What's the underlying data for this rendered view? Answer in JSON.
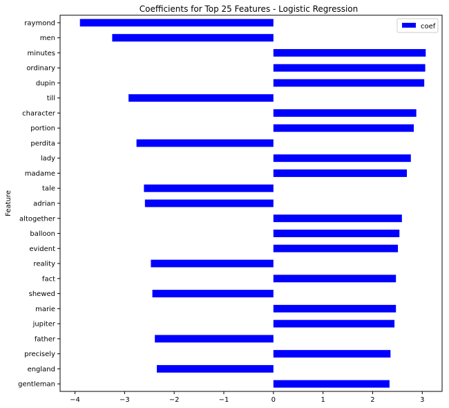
{
  "chart_data": {
    "type": "bar",
    "orientation": "horizontal",
    "title": "Coefficients for Top 25 Features - Logistic Regression",
    "xlabel": "",
    "ylabel": "Feature",
    "xlim": [
      -4.3,
      3.4
    ],
    "xticks": [
      -4,
      -3,
      -2,
      -1,
      0,
      1,
      2,
      3
    ],
    "xtick_labels": [
      "−4",
      "−3",
      "−2",
      "−1",
      "0",
      "1",
      "2",
      "3"
    ],
    "grid": false,
    "legend_position": "top-right",
    "series": [
      {
        "name": "coef",
        "color": "#0000ff",
        "categories": [
          "raymond",
          "men",
          "minutes",
          "ordinary",
          "dupin",
          "till",
          "character",
          "portion",
          "perdita",
          "lady",
          "madame",
          "tale",
          "adrian",
          "altogether",
          "balloon",
          "evident",
          "reality",
          "fact",
          "shewed",
          "marie",
          "jupiter",
          "father",
          "precisely",
          "england",
          "gentleman"
        ],
        "values": [
          -3.9,
          -3.25,
          3.07,
          3.06,
          3.04,
          -2.92,
          2.88,
          2.83,
          -2.76,
          2.77,
          2.69,
          -2.61,
          -2.59,
          2.59,
          2.54,
          2.51,
          -2.47,
          2.47,
          -2.44,
          2.47,
          2.44,
          -2.39,
          2.36,
          -2.35,
          2.34
        ]
      }
    ]
  }
}
